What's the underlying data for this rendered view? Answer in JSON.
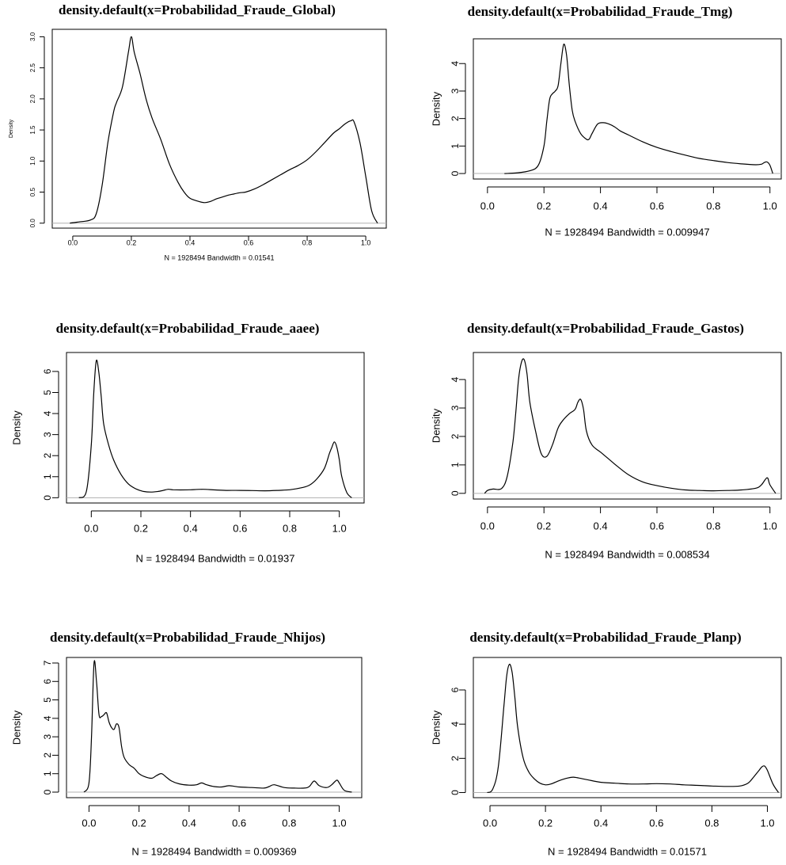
{
  "chart_data": [
    {
      "type": "line",
      "title": "density.default(x=Probabilidad_Fraude_Global)",
      "xlabel": "N = 1928494   Bandwidth = 0.01541",
      "ylabel": "Density",
      "xlim": [
        -0.07,
        1.07
      ],
      "ylim": [
        -0.08,
        3.12
      ],
      "xticks": [
        0.0,
        0.2,
        0.4,
        0.6,
        0.8,
        1.0
      ],
      "xtick_labels": [
        "0.0",
        "0.2",
        "0.4",
        "0.6",
        "0.8",
        "1.0"
      ],
      "yticks": [
        0.0,
        0.5,
        1.0,
        1.5,
        2.0,
        2.5,
        3.0
      ],
      "ytick_labels": [
        "0.0",
        "0.5",
        "1.0",
        "1.5",
        "2.0",
        "2.5",
        "3.0"
      ],
      "grid": false,
      "baseline": 0,
      "series": [
        {
          "x": [
            -0.01,
            0.02,
            0.06,
            0.08,
            0.1,
            0.12,
            0.14,
            0.15,
            0.17,
            0.19,
            0.2,
            0.21,
            0.23,
            0.25,
            0.27,
            0.3,
            0.33,
            0.36,
            0.38,
            0.4,
            0.43,
            0.45,
            0.47,
            0.49,
            0.51,
            0.53,
            0.55,
            0.57,
            0.59,
            0.62,
            0.65,
            0.68,
            0.71,
            0.74,
            0.77,
            0.8,
            0.83,
            0.86,
            0.89,
            0.91,
            0.93,
            0.95,
            0.96,
            0.98,
            1.0,
            1.02,
            1.04
          ],
          "y": [
            0.0,
            0.02,
            0.05,
            0.15,
            0.6,
            1.3,
            1.8,
            1.95,
            2.2,
            2.75,
            3.0,
            2.75,
            2.4,
            2.0,
            1.7,
            1.35,
            0.95,
            0.65,
            0.5,
            0.4,
            0.35,
            0.33,
            0.35,
            0.39,
            0.42,
            0.45,
            0.47,
            0.49,
            0.5,
            0.55,
            0.62,
            0.7,
            0.78,
            0.86,
            0.93,
            1.02,
            1.15,
            1.3,
            1.45,
            1.52,
            1.6,
            1.65,
            1.63,
            1.3,
            0.75,
            0.2,
            0.0
          ]
        }
      ]
    },
    {
      "type": "line",
      "title": "density.default(x=Probabilidad_Fraude_Tmg)",
      "xlabel": "N = 1928494   Bandwidth = 0.009947",
      "ylabel": "Density",
      "xlim": [
        -0.05,
        1.04
      ],
      "ylim": [
        -0.2,
        4.9
      ],
      "xticks": [
        0.0,
        0.2,
        0.4,
        0.6,
        0.8,
        1.0
      ],
      "xtick_labels": [
        "0.0",
        "0.2",
        "0.4",
        "0.6",
        "0.8",
        "1.0"
      ],
      "yticks": [
        0,
        1,
        2,
        3,
        4
      ],
      "ytick_labels": [
        "0",
        "1",
        "2",
        "3",
        "4"
      ],
      "grid": false,
      "baseline": 0,
      "series": [
        {
          "x": [
            0.06,
            0.1,
            0.15,
            0.18,
            0.2,
            0.21,
            0.22,
            0.23,
            0.24,
            0.25,
            0.26,
            0.27,
            0.28,
            0.29,
            0.3,
            0.31,
            0.33,
            0.35,
            0.36,
            0.37,
            0.39,
            0.41,
            0.43,
            0.45,
            0.47,
            0.5,
            0.55,
            0.6,
            0.65,
            0.7,
            0.75,
            0.8,
            0.85,
            0.9,
            0.95,
            0.97,
            0.98,
            0.99,
            1.0,
            1.01
          ],
          "y": [
            0.0,
            0.02,
            0.1,
            0.3,
            1.0,
            1.9,
            2.7,
            2.9,
            3.0,
            3.2,
            4.0,
            4.7,
            4.3,
            3.2,
            2.3,
            1.9,
            1.45,
            1.25,
            1.25,
            1.45,
            1.8,
            1.85,
            1.8,
            1.7,
            1.55,
            1.4,
            1.15,
            0.95,
            0.8,
            0.67,
            0.55,
            0.47,
            0.4,
            0.35,
            0.32,
            0.34,
            0.4,
            0.42,
            0.3,
            0.0
          ]
        }
      ]
    },
    {
      "type": "line",
      "title": "density.default(x=Probabilidad_Fraude_aaee)",
      "xlabel": "N = 1928494   Bandwidth = 0.01937",
      "ylabel": "Density",
      "xlim": [
        -0.1,
        1.1
      ],
      "ylim": [
        -0.25,
        6.9
      ],
      "xticks": [
        0.0,
        0.2,
        0.4,
        0.6,
        0.8,
        1.0
      ],
      "xtick_labels": [
        "0.0",
        "0.2",
        "0.4",
        "0.6",
        "0.8",
        "1.0"
      ],
      "yticks": [
        0,
        1,
        2,
        3,
        4,
        5,
        6
      ],
      "ytick_labels": [
        "0",
        "1",
        "2",
        "3",
        "4",
        "5",
        "6"
      ],
      "grid": false,
      "baseline": 0,
      "series": [
        {
          "x": [
            -0.05,
            -0.02,
            0.0,
            0.01,
            0.02,
            0.03,
            0.04,
            0.05,
            0.07,
            0.09,
            0.12,
            0.15,
            0.18,
            0.21,
            0.24,
            0.27,
            0.29,
            0.31,
            0.33,
            0.36,
            0.4,
            0.45,
            0.5,
            0.55,
            0.6,
            0.65,
            0.7,
            0.75,
            0.8,
            0.85,
            0.88,
            0.91,
            0.94,
            0.96,
            0.97,
            0.98,
            0.99,
            1.0,
            1.01,
            1.03,
            1.05
          ],
          "y": [
            0.0,
            0.3,
            2.5,
            5.0,
            6.5,
            6.0,
            4.8,
            3.5,
            2.5,
            1.8,
            1.1,
            0.65,
            0.42,
            0.3,
            0.27,
            0.3,
            0.35,
            0.4,
            0.38,
            0.37,
            0.38,
            0.4,
            0.37,
            0.35,
            0.35,
            0.34,
            0.33,
            0.35,
            0.38,
            0.48,
            0.6,
            0.9,
            1.4,
            2.1,
            2.4,
            2.65,
            2.4,
            1.8,
            1.0,
            0.25,
            0.0
          ]
        }
      ]
    },
    {
      "type": "line",
      "title": "density.default(x=Probabilidad_Fraude_Gastos)",
      "xlabel": "N = 1928494   Bandwidth = 0.008534",
      "ylabel": "Density",
      "xlim": [
        -0.05,
        1.04
      ],
      "ylim": [
        -0.2,
        4.95
      ],
      "xticks": [
        0.0,
        0.2,
        0.4,
        0.6,
        0.8,
        1.0
      ],
      "xtick_labels": [
        "0.0",
        "0.2",
        "0.4",
        "0.6",
        "0.8",
        "1.0"
      ],
      "yticks": [
        0,
        1,
        2,
        3,
        4
      ],
      "ytick_labels": [
        "0",
        "1",
        "2",
        "3",
        "4"
      ],
      "grid": false,
      "baseline": 0,
      "series": [
        {
          "x": [
            -0.01,
            0.0,
            0.02,
            0.05,
            0.07,
            0.09,
            0.1,
            0.11,
            0.12,
            0.13,
            0.14,
            0.15,
            0.17,
            0.19,
            0.21,
            0.23,
            0.25,
            0.27,
            0.29,
            0.31,
            0.32,
            0.33,
            0.34,
            0.35,
            0.37,
            0.4,
            0.43,
            0.46,
            0.5,
            0.55,
            0.6,
            0.65,
            0.7,
            0.75,
            0.8,
            0.85,
            0.9,
            0.95,
            0.97,
            0.99,
            1.0,
            1.02
          ],
          "y": [
            0.0,
            0.1,
            0.15,
            0.17,
            0.6,
            1.8,
            2.8,
            4.0,
            4.6,
            4.7,
            4.2,
            3.2,
            2.2,
            1.4,
            1.3,
            1.7,
            2.3,
            2.6,
            2.8,
            2.95,
            3.2,
            3.3,
            2.95,
            2.2,
            1.7,
            1.45,
            1.2,
            0.95,
            0.65,
            0.4,
            0.27,
            0.18,
            0.12,
            0.1,
            0.09,
            0.1,
            0.12,
            0.18,
            0.3,
            0.55,
            0.3,
            0.0
          ]
        }
      ]
    },
    {
      "type": "line",
      "title": "density.default(x=Probabilidad_Fraude_Nhijos)",
      "xlabel": "N = 1928494   Bandwidth = 0.009369",
      "ylabel": "Density",
      "xlim": [
        -0.09,
        1.09
      ],
      "ylim": [
        -0.3,
        7.3
      ],
      "xticks": [
        0.0,
        0.2,
        0.4,
        0.6,
        0.8,
        1.0
      ],
      "xtick_labels": [
        "0.0",
        "0.2",
        "0.4",
        "0.6",
        "0.8",
        "1.0"
      ],
      "yticks": [
        0,
        1,
        2,
        3,
        4,
        5,
        6,
        7
      ],
      "ytick_labels": [
        "0",
        "1",
        "2",
        "3",
        "4",
        "5",
        "6",
        "7"
      ],
      "grid": false,
      "baseline": 0,
      "series": [
        {
          "x": [
            -0.02,
            0.0,
            0.01,
            0.02,
            0.03,
            0.04,
            0.05,
            0.06,
            0.07,
            0.08,
            0.09,
            0.1,
            0.11,
            0.12,
            0.13,
            0.14,
            0.16,
            0.18,
            0.2,
            0.22,
            0.25,
            0.27,
            0.29,
            0.31,
            0.33,
            0.36,
            0.4,
            0.43,
            0.45,
            0.47,
            0.5,
            0.53,
            0.56,
            0.6,
            0.65,
            0.7,
            0.72,
            0.74,
            0.78,
            0.82,
            0.86,
            0.88,
            0.9,
            0.92,
            0.95,
            0.97,
            0.99,
            1.0,
            1.02,
            1.05
          ],
          "y": [
            0.0,
            0.5,
            3.0,
            7.0,
            6.0,
            4.2,
            4.1,
            4.2,
            4.3,
            3.8,
            3.5,
            3.4,
            3.7,
            3.5,
            2.5,
            1.9,
            1.5,
            1.3,
            1.0,
            0.85,
            0.75,
            0.9,
            1.0,
            0.8,
            0.6,
            0.45,
            0.38,
            0.4,
            0.5,
            0.4,
            0.3,
            0.28,
            0.35,
            0.28,
            0.25,
            0.22,
            0.3,
            0.4,
            0.25,
            0.22,
            0.22,
            0.3,
            0.6,
            0.35,
            0.25,
            0.4,
            0.65,
            0.5,
            0.1,
            0.0
          ]
        }
      ]
    },
    {
      "type": "line",
      "title": "density.default(x=Probabilidad_Fraude_Planp)",
      "xlabel": "N = 1928494   Bandwidth = 0.01571",
      "ylabel": "Density",
      "xlim": [
        -0.06,
        1.05
      ],
      "ylim": [
        -0.3,
        7.9
      ],
      "xticks": [
        0.0,
        0.2,
        0.4,
        0.6,
        0.8,
        1.0
      ],
      "xtick_labels": [
        "0.0",
        "0.2",
        "0.4",
        "0.6",
        "0.8",
        "1.0"
      ],
      "yticks": [
        0,
        2,
        4,
        6
      ],
      "ytick_labels": [
        "0",
        "2",
        "4",
        "6"
      ],
      "grid": false,
      "baseline": 0,
      "series": [
        {
          "x": [
            -0.01,
            0.01,
            0.03,
            0.05,
            0.06,
            0.07,
            0.08,
            0.09,
            0.1,
            0.12,
            0.14,
            0.16,
            0.18,
            0.2,
            0.22,
            0.25,
            0.28,
            0.3,
            0.32,
            0.35,
            0.4,
            0.45,
            0.5,
            0.55,
            0.6,
            0.65,
            0.7,
            0.75,
            0.8,
            0.85,
            0.9,
            0.93,
            0.95,
            0.97,
            0.98,
            0.99,
            1.0,
            1.02,
            1.04
          ],
          "y": [
            0.0,
            0.2,
            1.5,
            5.0,
            6.8,
            7.5,
            7.0,
            5.5,
            3.8,
            2.0,
            1.2,
            0.8,
            0.55,
            0.45,
            0.5,
            0.7,
            0.85,
            0.9,
            0.85,
            0.75,
            0.6,
            0.55,
            0.5,
            0.5,
            0.52,
            0.5,
            0.45,
            0.42,
            0.38,
            0.36,
            0.38,
            0.55,
            0.9,
            1.3,
            1.5,
            1.55,
            1.3,
            0.5,
            0.0
          ]
        }
      ]
    }
  ]
}
